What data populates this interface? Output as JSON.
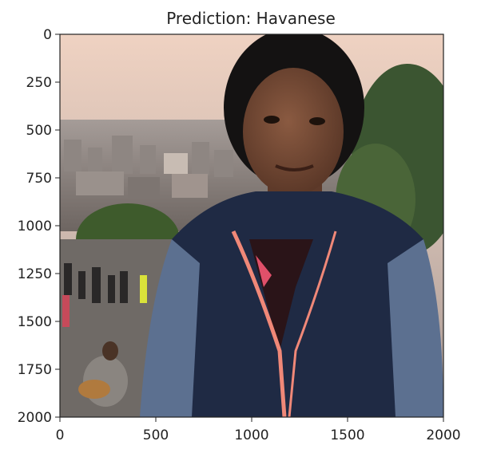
{
  "chart_data": {
    "type": "image",
    "title": "Prediction: Havanese",
    "xlabel": "",
    "ylabel": "",
    "xlim": [
      0,
      2000
    ],
    "ylim": [
      2000,
      0
    ],
    "x_ticks": [
      0,
      500,
      1000,
      1500,
      2000
    ],
    "y_ticks": [
      0,
      250,
      500,
      750,
      1000,
      1250,
      1500,
      1750,
      2000
    ],
    "x_tick_labels": [
      "0",
      "500",
      "1000",
      "1500",
      "2000"
    ],
    "y_tick_labels": [
      "0",
      "250",
      "500",
      "750",
      "1000",
      "1250",
      "1500",
      "1750",
      "2000"
    ],
    "grid": false,
    "image_content": "photo of a smiling woman in a dark navy jacket with coral trim standing in front of a city skyline at dusk, trees and people on steps behind her"
  },
  "colors": {
    "sky_top": "#f2d8c8",
    "sky_bottom": "#b8a79f",
    "jacket": "#1f2a44",
    "jacket_sleeve": "#5a6f8c",
    "trim": "#f08878",
    "tree": "#3c5a2e",
    "skin": "#6e4633",
    "hair": "#111111"
  }
}
